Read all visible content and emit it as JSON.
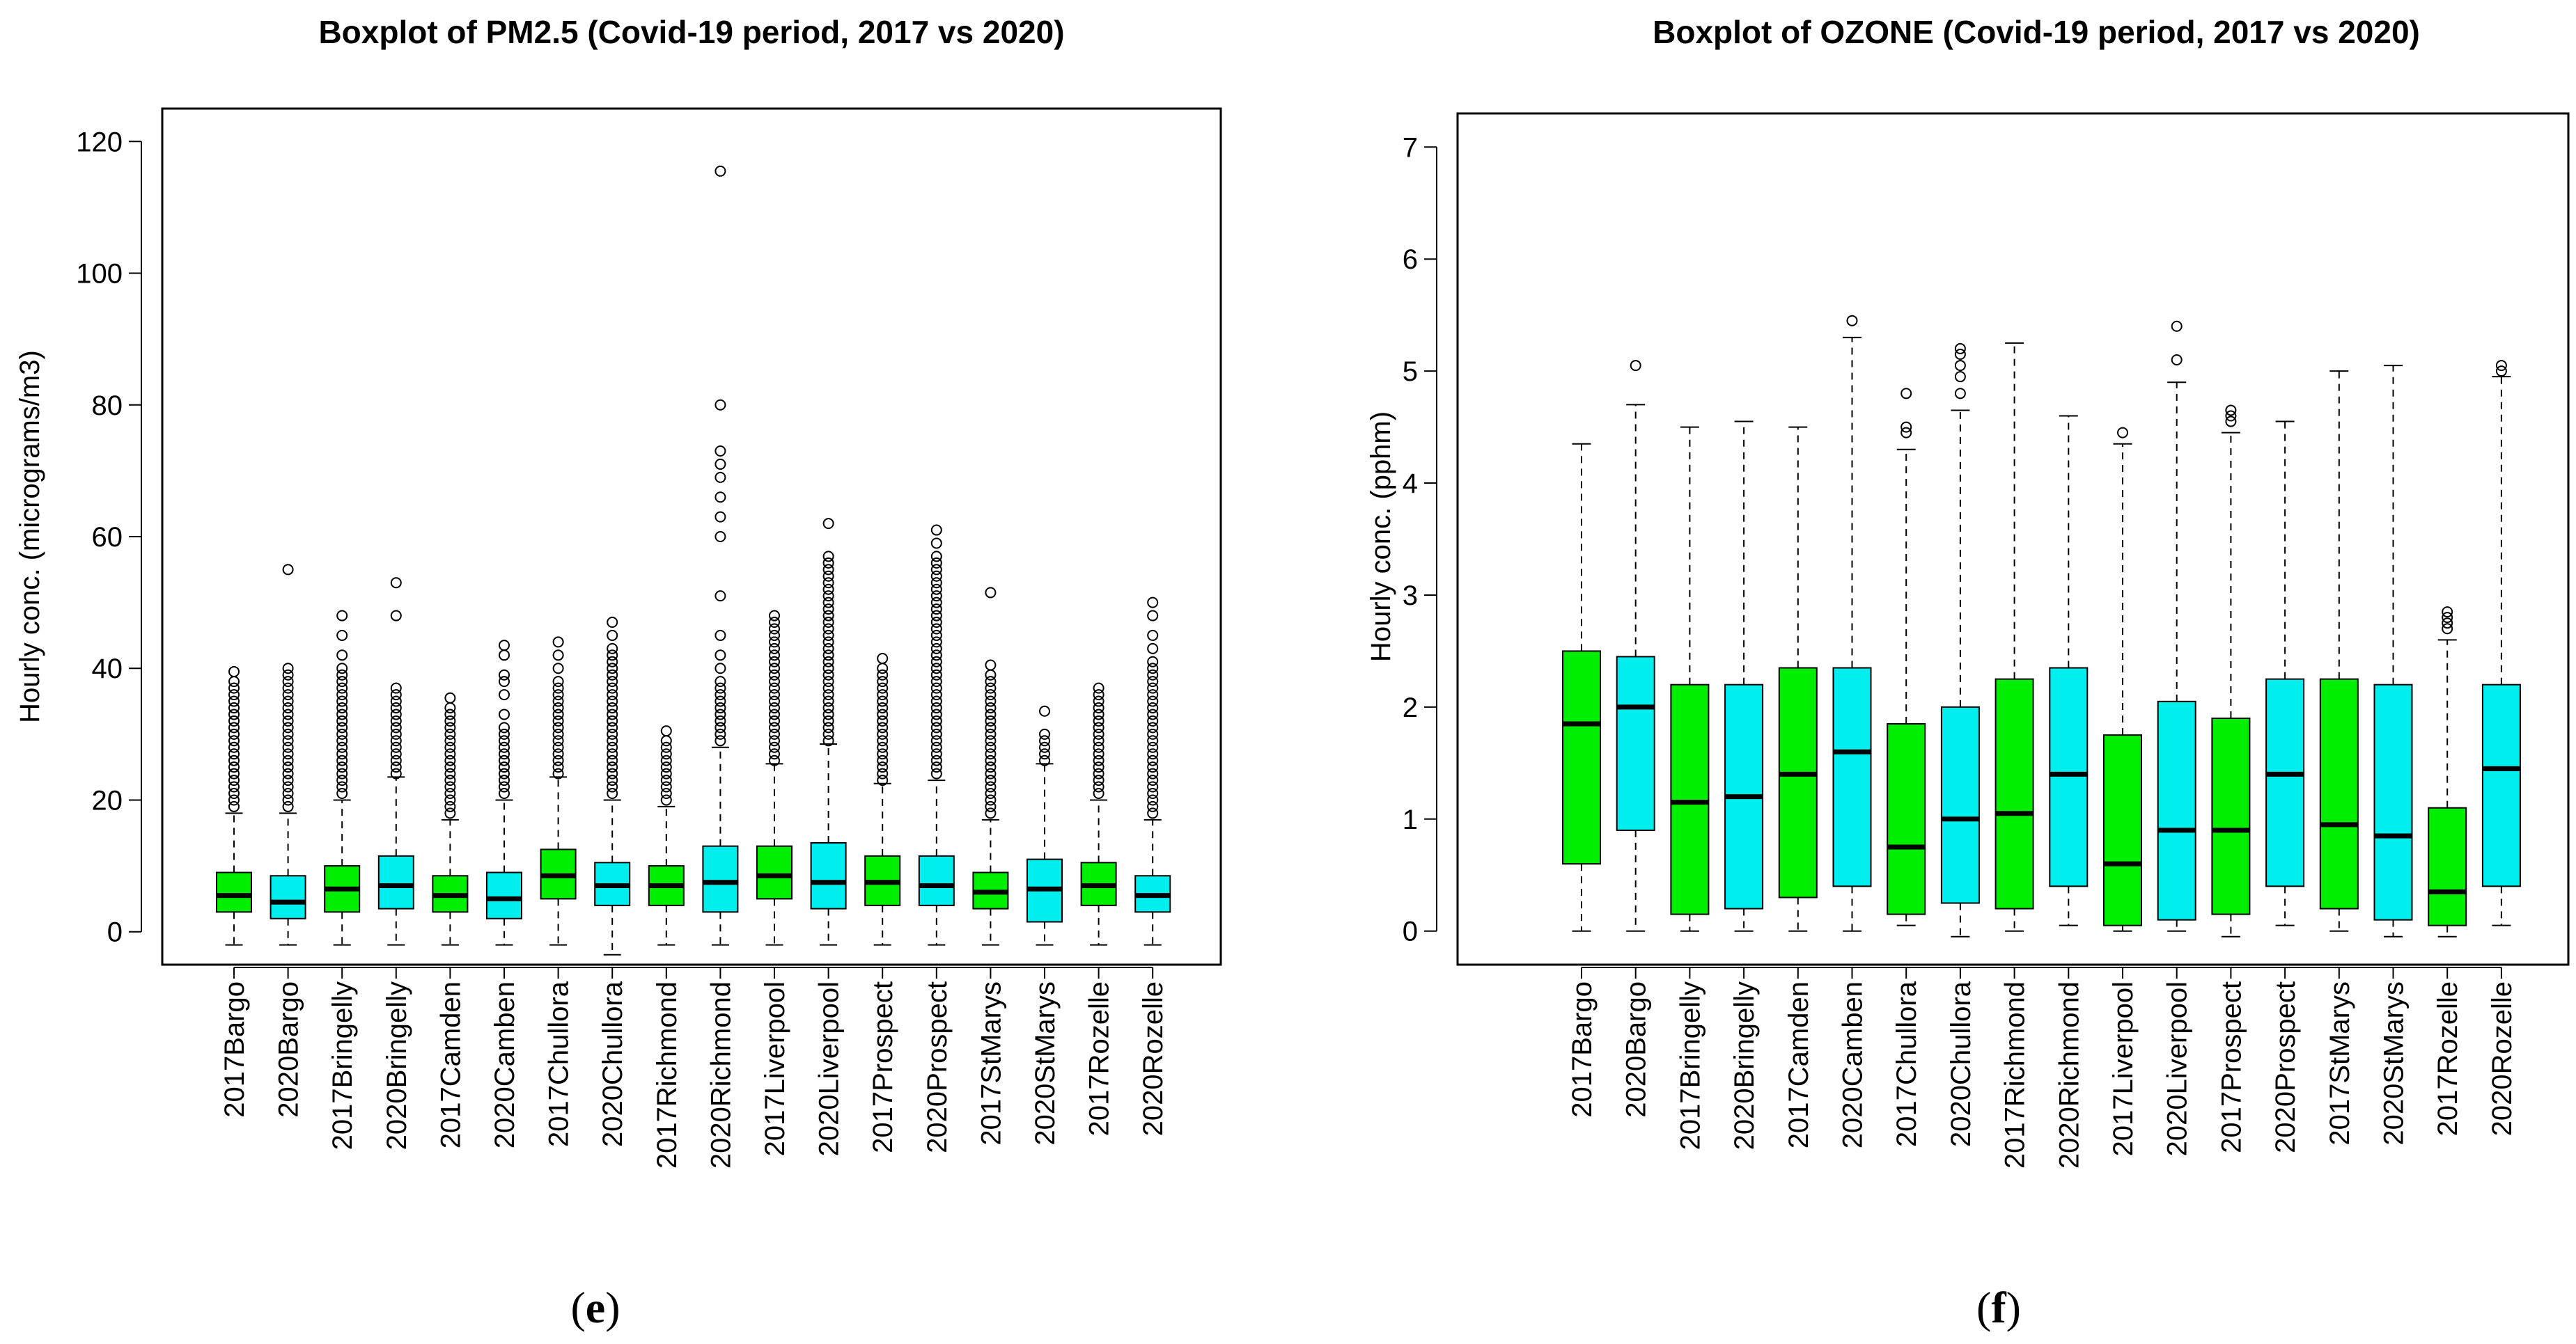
{
  "colors": {
    "y2017": "#00ee00",
    "y2020": "#00eeee",
    "median": "#000000",
    "whisker": "#000000"
  },
  "chart_data": [
    {
      "type": "boxplot",
      "title": "Boxplot of PM2.5 (Covid-19 period, 2017 vs 2020)",
      "xlabel": "",
      "ylabel": "Hourly conc. (micrograms/m3)",
      "ylim": [
        -5,
        125
      ],
      "yticks": [
        0,
        20,
        40,
        60,
        80,
        100,
        120
      ],
      "panel_label": "e",
      "categories": [
        "2017Bargo",
        "2020Bargo",
        "2017Bringelly",
        "2020Bringelly",
        "2017Camden",
        "2020Camben",
        "2017Chullora",
        "2020Chullora",
        "2017Richmond",
        "2020Richmond",
        "2017Liverpool",
        "2020Liverpool",
        "2017Prospect",
        "2020Prospect",
        "2017StMarys",
        "2020StMarys",
        "2017Rozelle",
        "2020Rozelle"
      ],
      "boxes": [
        {
          "low": -2,
          "q1": 3,
          "median": 5.5,
          "q3": 9,
          "high": 18,
          "outliers": [
            19,
            20,
            21,
            22,
            23,
            24,
            25,
            26,
            27,
            28,
            29,
            30,
            31,
            32,
            33,
            34,
            35,
            36,
            37,
            38,
            39.5
          ]
        },
        {
          "low": -2,
          "q1": 2,
          "median": 4.5,
          "q3": 8.5,
          "high": 18,
          "outliers": [
            19,
            20,
            21,
            22,
            23,
            24,
            25,
            26,
            27,
            28,
            29,
            30,
            31,
            32,
            33,
            34,
            35,
            36,
            37,
            38,
            39,
            40,
            55
          ]
        },
        {
          "low": -2,
          "q1": 3,
          "median": 6.5,
          "q3": 10,
          "high": 20,
          "outliers": [
            21,
            22,
            23,
            24,
            25,
            26,
            27,
            28,
            29,
            30,
            31,
            32,
            33,
            34,
            35,
            36,
            37,
            38,
            39,
            40,
            42,
            45,
            48
          ]
        },
        {
          "low": -2,
          "q1": 3.5,
          "median": 7,
          "q3": 11.5,
          "high": 23.5,
          "outliers": [
            24,
            25,
            26,
            27,
            28,
            29,
            30,
            31,
            32,
            33,
            34,
            35,
            36,
            37,
            48,
            53
          ]
        },
        {
          "low": -2,
          "q1": 3,
          "median": 5.5,
          "q3": 8.5,
          "high": 17,
          "outliers": [
            18,
            19,
            20,
            21,
            22,
            23,
            24,
            25,
            26,
            27,
            28,
            29,
            30,
            31,
            32,
            33,
            34,
            35.5
          ]
        },
        {
          "low": -2,
          "q1": 2,
          "median": 5,
          "q3": 9,
          "high": 20,
          "outliers": [
            21,
            22,
            23,
            24,
            25,
            26,
            27,
            28,
            29,
            30,
            31,
            33,
            36,
            38,
            39,
            42,
            43.5
          ]
        },
        {
          "low": -2,
          "q1": 5,
          "median": 8.5,
          "q3": 12.5,
          "high": 23.5,
          "outliers": [
            24,
            25,
            26,
            27,
            28,
            29,
            30,
            31,
            32,
            33,
            34,
            35,
            36,
            37,
            38,
            40,
            42,
            44
          ]
        },
        {
          "low": -3.5,
          "q1": 4,
          "median": 7,
          "q3": 10.5,
          "high": 20,
          "outliers": [
            21,
            22,
            23,
            24,
            25,
            26,
            27,
            28,
            29,
            30,
            31,
            32,
            33,
            34,
            35,
            36,
            37,
            38,
            39,
            40,
            41,
            42,
            43,
            45,
            47
          ]
        },
        {
          "low": -2,
          "q1": 4,
          "median": 7,
          "q3": 10,
          "high": 19,
          "outliers": [
            20,
            21,
            22,
            23,
            24,
            25,
            26,
            27,
            28,
            29,
            30.5
          ]
        },
        {
          "low": -2,
          "q1": 3,
          "median": 7.5,
          "q3": 13,
          "high": 28,
          "outliers": [
            29,
            30,
            31,
            32,
            33,
            34,
            35,
            36,
            37,
            38,
            40,
            42,
            45,
            51,
            60,
            63,
            66,
            69,
            71,
            73,
            80,
            115.5
          ]
        },
        {
          "low": -2,
          "q1": 5,
          "median": 8.5,
          "q3": 13,
          "high": 25.5,
          "outliers": [
            26,
            27,
            28,
            29,
            30,
            31,
            32,
            33,
            34,
            35,
            36,
            37,
            38,
            39,
            40,
            41,
            42,
            43,
            44,
            45,
            46,
            47,
            48
          ]
        },
        {
          "low": -2,
          "q1": 3.5,
          "median": 7.5,
          "q3": 13.5,
          "high": 28.5,
          "outliers": [
            29,
            30,
            31,
            32,
            33,
            34,
            35,
            36,
            37,
            38,
            39,
            40,
            41,
            42,
            43,
            44,
            45,
            46,
            47,
            48,
            49,
            50,
            51,
            52,
            53,
            54,
            55,
            56,
            57,
            62
          ]
        },
        {
          "low": -2,
          "q1": 4,
          "median": 7.5,
          "q3": 11.5,
          "high": 22.5,
          "outliers": [
            23,
            24,
            25,
            26,
            27,
            28,
            29,
            30,
            31,
            32,
            33,
            34,
            35,
            36,
            37,
            38,
            39,
            40,
            41.5
          ]
        },
        {
          "low": -2,
          "q1": 4,
          "median": 7,
          "q3": 11.5,
          "high": 23,
          "outliers": [
            24,
            25,
            26,
            27,
            28,
            29,
            30,
            31,
            32,
            33,
            34,
            35,
            36,
            37,
            38,
            39,
            40,
            41,
            42,
            43,
            44,
            45,
            46,
            47,
            48,
            49,
            50,
            51,
            52,
            53,
            54,
            55,
            56,
            57,
            59,
            61
          ]
        },
        {
          "low": -2,
          "q1": 3.5,
          "median": 6,
          "q3": 9,
          "high": 17,
          "outliers": [
            18,
            19,
            20,
            21,
            22,
            23,
            24,
            25,
            26,
            27,
            28,
            29,
            30,
            31,
            32,
            33,
            34,
            35,
            36,
            37,
            38,
            39,
            40.5,
            51.5
          ]
        },
        {
          "low": -2,
          "q1": 1.5,
          "median": 6.5,
          "q3": 11,
          "high": 25.5,
          "outliers": [
            26,
            27,
            28,
            29,
            30,
            33.5
          ]
        },
        {
          "low": -2,
          "q1": 4,
          "median": 7,
          "q3": 10.5,
          "high": 20,
          "outliers": [
            21,
            22,
            23,
            24,
            25,
            26,
            27,
            28,
            29,
            30,
            31,
            32,
            33,
            34,
            35,
            36,
            37
          ]
        },
        {
          "low": -2,
          "q1": 3,
          "median": 5.5,
          "q3": 8.5,
          "high": 17,
          "outliers": [
            18,
            19,
            20,
            21,
            22,
            23,
            24,
            25,
            26,
            27,
            28,
            29,
            30,
            31,
            32,
            33,
            34,
            35,
            36,
            37,
            38,
            39,
            40,
            41,
            43,
            45,
            48,
            50
          ]
        }
      ]
    },
    {
      "type": "boxplot",
      "title": "Boxplot of OZONE (Covid-19 period, 2017 vs 2020)",
      "xlabel": "",
      "ylabel": "Hourly conc. (pphm)",
      "ylim": [
        -0.3,
        7.3
      ],
      "yticks": [
        0,
        1,
        2,
        3,
        4,
        5,
        6,
        7
      ],
      "panel_label": "f",
      "categories": [
        "2017Bargo",
        "2020Bargo",
        "2017Bringelly",
        "2020Bringelly",
        "2017Camden",
        "2020Camben",
        "2017Chullora",
        "2020Chullora",
        "2017Richmond",
        "2020Richmond",
        "2017Liverpool",
        "2020Liverpool",
        "2017Prospect",
        "2020Prospect",
        "2017StMarys",
        "2020StMarys",
        "2017Rozelle",
        "2020Rozelle"
      ],
      "boxes": [
        {
          "low": 0,
          "q1": 0.6,
          "median": 1.85,
          "q3": 2.5,
          "high": 4.35,
          "outliers": []
        },
        {
          "low": 0,
          "q1": 0.9,
          "median": 2.0,
          "q3": 2.45,
          "high": 4.7,
          "outliers": [
            5.05
          ]
        },
        {
          "low": 0,
          "q1": 0.15,
          "median": 1.15,
          "q3": 2.2,
          "high": 4.5,
          "outliers": []
        },
        {
          "low": 0,
          "q1": 0.2,
          "median": 1.2,
          "q3": 2.2,
          "high": 4.55,
          "outliers": []
        },
        {
          "low": 0,
          "q1": 0.3,
          "median": 1.4,
          "q3": 2.35,
          "high": 4.5,
          "outliers": []
        },
        {
          "low": 0,
          "q1": 0.4,
          "median": 1.6,
          "q3": 2.35,
          "high": 5.3,
          "outliers": [
            5.45
          ]
        },
        {
          "low": 0.05,
          "q1": 0.15,
          "median": 0.75,
          "q3": 1.85,
          "high": 4.3,
          "outliers": [
            4.45,
            4.5,
            4.8
          ]
        },
        {
          "low": -0.05,
          "q1": 0.25,
          "median": 1.0,
          "q3": 2.0,
          "high": 4.65,
          "outliers": [
            4.8,
            4.95,
            5.05,
            5.15,
            5.2
          ]
        },
        {
          "low": 0,
          "q1": 0.2,
          "median": 1.05,
          "q3": 2.25,
          "high": 5.25,
          "outliers": []
        },
        {
          "low": 0.05,
          "q1": 0.4,
          "median": 1.4,
          "q3": 2.35,
          "high": 4.6,
          "outliers": []
        },
        {
          "low": 0,
          "q1": 0.05,
          "median": 0.6,
          "q3": 1.75,
          "high": 4.35,
          "outliers": [
            4.45
          ]
        },
        {
          "low": 0,
          "q1": 0.1,
          "median": 0.9,
          "q3": 2.05,
          "high": 4.9,
          "outliers": [
            5.1,
            5.4
          ]
        },
        {
          "low": -0.05,
          "q1": 0.15,
          "median": 0.9,
          "q3": 1.9,
          "high": 4.45,
          "outliers": [
            4.55,
            4.6,
            4.65
          ]
        },
        {
          "low": 0.05,
          "q1": 0.4,
          "median": 1.4,
          "q3": 2.25,
          "high": 4.55,
          "outliers": []
        },
        {
          "low": 0,
          "q1": 0.2,
          "median": 0.95,
          "q3": 2.25,
          "high": 5.0,
          "outliers": []
        },
        {
          "low": -0.05,
          "q1": 0.1,
          "median": 0.85,
          "q3": 2.2,
          "high": 5.05,
          "outliers": []
        },
        {
          "low": -0.05,
          "q1": 0.05,
          "median": 0.35,
          "q3": 1.1,
          "high": 2.6,
          "outliers": [
            2.7,
            2.75,
            2.8,
            2.85
          ]
        },
        {
          "low": 0.05,
          "q1": 0.4,
          "median": 1.45,
          "q3": 2.2,
          "high": 4.95,
          "outliers": [
            5.0,
            5.05
          ]
        }
      ]
    }
  ]
}
